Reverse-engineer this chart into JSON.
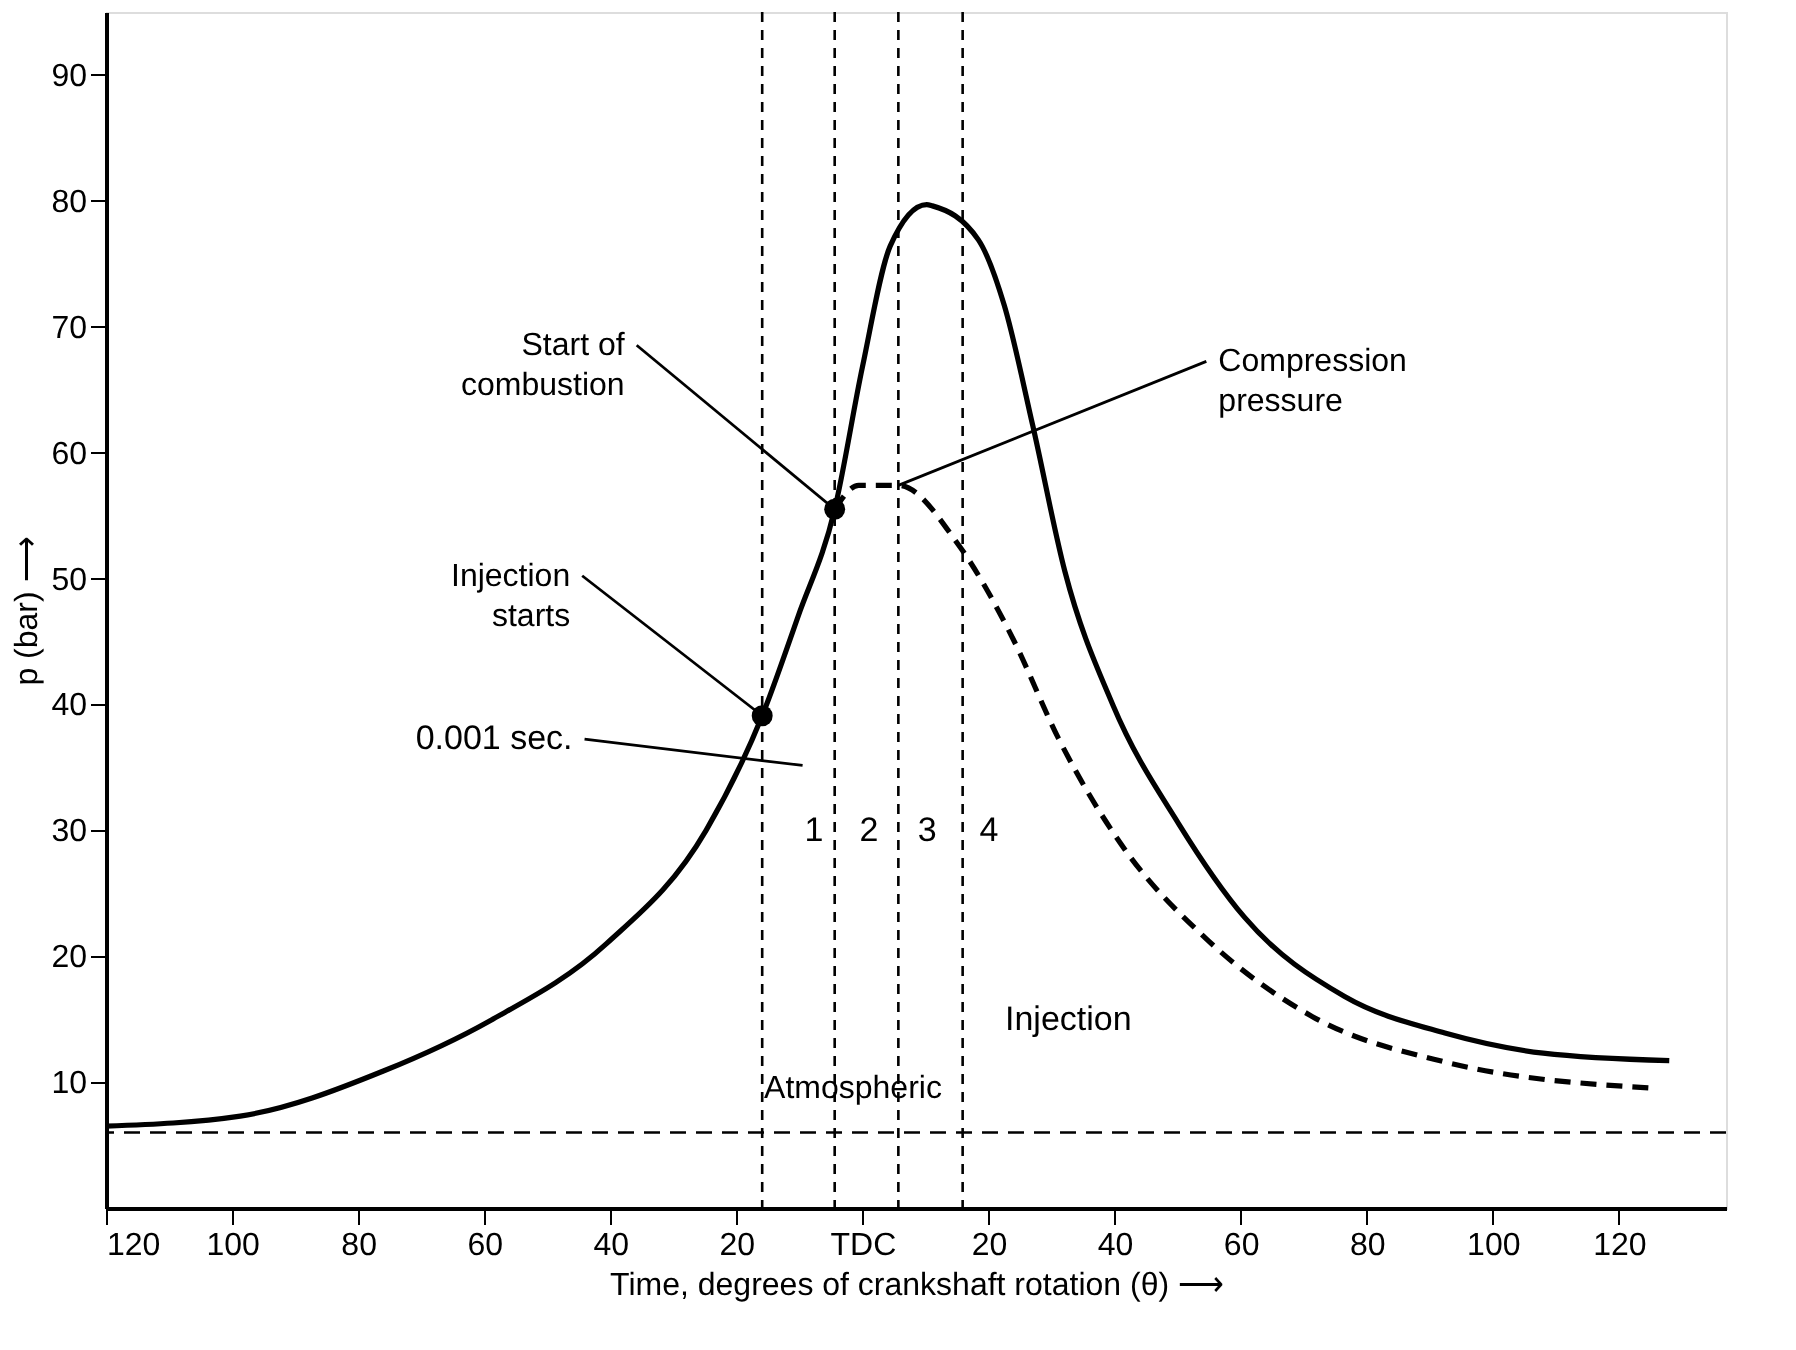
{
  "chart_data": {
    "type": "line",
    "xlabel": "Time, degrees of crankshaft rotation (θ) ⟶",
    "ylabel": "p (bar) ⟶",
    "xlim": [
      -120,
      137
    ],
    "ylim": [
      0,
      95
    ],
    "xticks": [
      {
        "value": -120,
        "label": "120"
      },
      {
        "value": -100,
        "label": "100"
      },
      {
        "value": -80,
        "label": "80"
      },
      {
        "value": -60,
        "label": "60"
      },
      {
        "value": -40,
        "label": "40"
      },
      {
        "value": -20,
        "label": "20"
      },
      {
        "value": 0,
        "label": "TDC"
      },
      20,
      40,
      60,
      80,
      100,
      120
    ],
    "yticks": [
      10,
      20,
      30,
      40,
      50,
      60,
      70,
      80,
      90
    ],
    "grid": false,
    "series": [
      {
        "line_style": "solid",
        "color": "#000000",
        "x": [
          -120,
          -98.7,
          -75.9,
          -59,
          -40.6,
          -24.8,
          -15.9,
          -10.2,
          -4.4,
          0,
          4.4,
          10.2,
          11.1,
          18.4,
          22.5,
          27,
          32.1,
          39.7,
          50.2,
          60.6,
          76.5,
          92.4,
          108,
          128
        ],
        "values": [
          6.5,
          7.3,
          10.9,
          14.9,
          21,
          30,
          39.1,
          47,
          55.5,
          66.8,
          76.4,
          79.7,
          79.6,
          76.9,
          71.7,
          62.2,
          50.6,
          40,
          30.5,
          23.1,
          16.8,
          13.9,
          12.3,
          11.7
        ]
      },
      {
        "line_style": "dashed",
        "color": "#000000",
        "x": [
          -4.4,
          -0.6,
          5.7,
          15.2,
          23.8,
          31.1,
          41.6,
          54.3,
          71.4,
          92.4,
          126
        ],
        "values": [
          55.5,
          57.4,
          57.4,
          52.7,
          45.3,
          37.3,
          28.5,
          21.5,
          15.2,
          11.6,
          9.5
        ]
      },
      {
        "type": "scatter",
        "marker": "circle",
        "color": "#000000",
        "x": [
          -15.9,
          -4.4
        ],
        "values": [
          39.1,
          55.5
        ]
      }
    ],
    "ref_lines": [
      {
        "axis": "y",
        "value": 6,
        "label": "Atmospheric",
        "line_style": "dashed",
        "color": "#000000"
      },
      {
        "axis": "x",
        "value": -15.9,
        "line_style": "dashed",
        "color": "#000000"
      },
      {
        "axis": "x",
        "value": -4.4,
        "line_style": "dashed",
        "color": "#000000"
      },
      {
        "axis": "x",
        "value": 5.7,
        "line_style": "dashed",
        "color": "#000000"
      },
      {
        "axis": "x",
        "value": 15.9,
        "line_style": "dashed",
        "color": "#000000"
      }
    ],
    "annotations": [
      {
        "text": "Start of\ncombustion",
        "x": -4.4,
        "y": 55.5
      },
      {
        "text": "Compression\npressure",
        "x": 5.7,
        "y": 57.4
      },
      {
        "text": "Injection\nstarts",
        "x": -15.9,
        "y": 39.1
      },
      "0.001 sec.",
      "1",
      "2",
      "3",
      "4",
      "Injection"
    ]
  }
}
